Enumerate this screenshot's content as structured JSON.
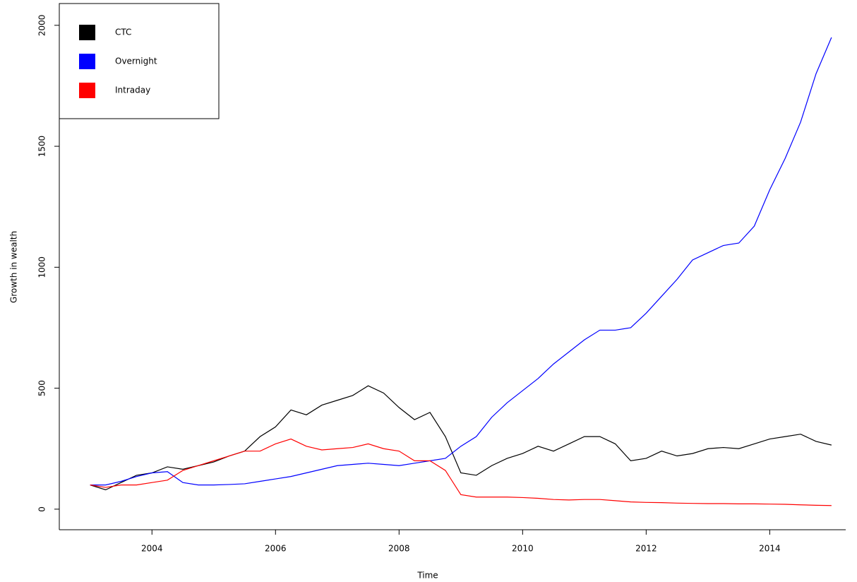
{
  "chart_data": {
    "type": "line",
    "x_label": "Time",
    "y_label": "Growth in wealth",
    "x": [
      2003,
      2003.25,
      2003.5,
      2003.75,
      2004,
      2004.25,
      2004.5,
      2004.75,
      2005,
      2005.25,
      2005.5,
      2005.75,
      2006,
      2006.25,
      2006.5,
      2006.75,
      2007,
      2007.25,
      2007.5,
      2007.75,
      2008,
      2008.25,
      2008.5,
      2008.75,
      2009,
      2009.25,
      2009.5,
      2009.75,
      2010,
      2010.25,
      2010.5,
      2010.75,
      2011,
      2011.25,
      2011.5,
      2011.75,
      2012,
      2012.25,
      2012.5,
      2012.75,
      2013,
      2013.25,
      2013.5,
      2013.75,
      2014,
      2014.25,
      2014.5,
      2014.75,
      2015
    ],
    "series": [
      {
        "name": "CTC",
        "color": "#000000",
        "values": [
          100,
          80,
          110,
          140,
          150,
          175,
          165,
          180,
          195,
          220,
          240,
          300,
          340,
          410,
          390,
          430,
          450,
          470,
          510,
          480,
          420,
          370,
          400,
          300,
          150,
          140,
          180,
          210,
          230,
          260,
          240,
          270,
          300,
          300,
          270,
          200,
          210,
          240,
          220,
          230,
          250,
          255,
          250,
          270,
          290,
          300,
          310,
          280,
          265
        ]
      },
      {
        "name": "Overnight",
        "color": "#0000ff",
        "values": [
          100,
          100,
          115,
          135,
          150,
          155,
          110,
          100,
          100,
          102,
          105,
          115,
          125,
          135,
          150,
          165,
          180,
          185,
          190,
          185,
          180,
          190,
          200,
          210,
          260,
          300,
          380,
          440,
          490,
          540,
          600,
          650,
          700,
          740,
          740,
          750,
          810,
          880,
          950,
          1030,
          1060,
          1090,
          1100,
          1170,
          1320,
          1450,
          1600,
          1800,
          1950
        ]
      },
      {
        "name": "Intraday",
        "color": "#ff0000",
        "values": [
          100,
          90,
          100,
          100,
          110,
          120,
          160,
          180,
          200,
          220,
          240,
          240,
          270,
          290,
          260,
          245,
          250,
          255,
          270,
          250,
          240,
          200,
          200,
          160,
          60,
          50,
          50,
          50,
          48,
          45,
          40,
          38,
          40,
          40,
          35,
          30,
          28,
          27,
          25,
          24,
          23,
          23,
          22,
          22,
          21,
          20,
          18,
          16,
          15
        ]
      }
    ],
    "xlim": [
      2002.5,
      2015.23
    ],
    "xticks": [
      2004,
      2006,
      2008,
      2010,
      2012,
      2014
    ],
    "ylim": [
      -85,
      2090
    ],
    "yticks": [
      0,
      500,
      1000,
      1500,
      2000
    ],
    "legend": "top-left"
  }
}
